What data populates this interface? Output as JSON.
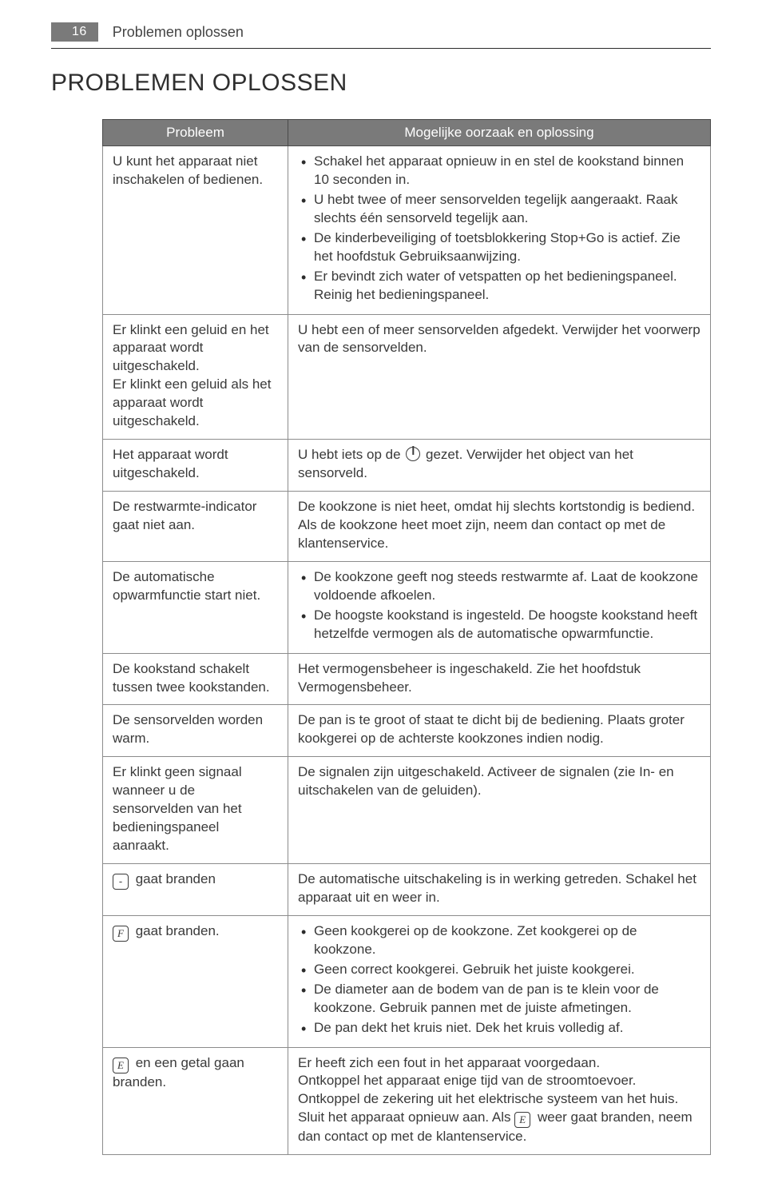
{
  "page": {
    "number": "16",
    "running_title": "Problemen oplossen"
  },
  "heading": "PROBLEMEN OPLOSSEN",
  "table": {
    "columns": {
      "problem": "Probleem",
      "solution": "Mogelijke oorzaak en oplossing"
    },
    "symbols": {
      "dash": "-",
      "F": "F",
      "E": "E"
    },
    "rows": [
      {
        "problem": "U kunt het apparaat niet inschakelen of bedienen.",
        "solution_type": "list",
        "items": [
          "Schakel het apparaat opnieuw in en stel de kookstand binnen 10 seconden in.",
          "U hebt twee of meer sensorvelden tegelijk aangeraakt. Raak slechts één sensorveld tegelijk aan.",
          "De kinderbeveiliging of toetsblokkering Stop+Go is actief. Zie het hoofdstuk Gebruiksaanwijzing.",
          "Er bevindt zich water of vetspatten op het bedieningspaneel. Reinig het bedieningspaneel."
        ]
      },
      {
        "problem": "Er klinkt een geluid en het apparaat wordt uitgeschakeld.\nEr klinkt een geluid als het apparaat wordt uitgeschakeld.",
        "solution_type": "text",
        "text": "U hebt een of meer sensorvelden afgedekt. Verwijder het voorwerp van de sensorvelden."
      },
      {
        "problem": "Het apparaat wordt uitgeschakeld.",
        "solution_type": "power",
        "pre": "U hebt iets op de ",
        "post": " gezet. Verwijder het object van het sensorveld."
      },
      {
        "problem": "De restwarmte-indicator gaat niet aan.",
        "solution_type": "text",
        "text": "De kookzone is niet heet, omdat hij slechts kortstondig is bediend. Als de kookzone heet moet zijn, neem dan contact op met de klantenservice."
      },
      {
        "problem": "De automatische opwarmfunctie start niet.",
        "solution_type": "list",
        "items": [
          "De kookzone geeft nog steeds restwarmte af. Laat de kookzone voldoende afkoelen.",
          "De hoogste kookstand is ingesteld. De hoogste kookstand heeft hetzelfde vermogen als de automatische opwarmfunctie."
        ]
      },
      {
        "problem": "De kookstand schakelt tussen twee kookstanden.",
        "solution_type": "text",
        "text": "Het vermogensbeheer is ingeschakeld. Zie het hoofdstuk Vermogensbeheer."
      },
      {
        "problem": "De sensorvelden worden warm.",
        "solution_type": "text",
        "text": "De pan is te groot of staat te dicht bij de bediening. Plaats groter kookgerei op de achterste kookzones indien nodig."
      },
      {
        "problem": "Er klinkt geen signaal wanneer u de sensorvelden van het bedieningspaneel aanraakt.",
        "solution_type": "text",
        "text": "De signalen zijn uitgeschakeld. Activeer de signalen (zie In- en uitschakelen van de geluiden)."
      },
      {
        "problem_type": "symbol",
        "symbol": "dash",
        "problem_tail": " gaat branden",
        "solution_type": "text",
        "text": "De automatische uitschakeling is in werking getreden. Schakel het apparaat uit en weer in."
      },
      {
        "problem_type": "symbol",
        "symbol": "F",
        "problem_tail": " gaat branden.",
        "solution_type": "list",
        "items": [
          "Geen kookgerei op de kookzone. Zet kookgerei op de kookzone.",
          "Geen correct kookgerei. Gebruik het juiste kookgerei.",
          "De diameter aan de bodem van de pan is te klein voor de kookzone. Gebruik pannen met de juiste afmetingen.",
          "De pan dekt het kruis niet. Dek het kruis volledig af."
        ]
      },
      {
        "problem_type": "symbol",
        "symbol": "E",
        "problem_tail": " en een getal gaan branden.",
        "solution_type": "esym",
        "pre": "Er heeft zich een fout in het apparaat voorgedaan.\nOntkoppel het apparaat enige tijd van de stroomtoevoer. Ontkoppel de zekering uit het elektrische systeem van het huis. Sluit het apparaat opnieuw aan. Als ",
        "post": " weer gaat branden, neem dan contact op met de klantenservice."
      }
    ]
  }
}
